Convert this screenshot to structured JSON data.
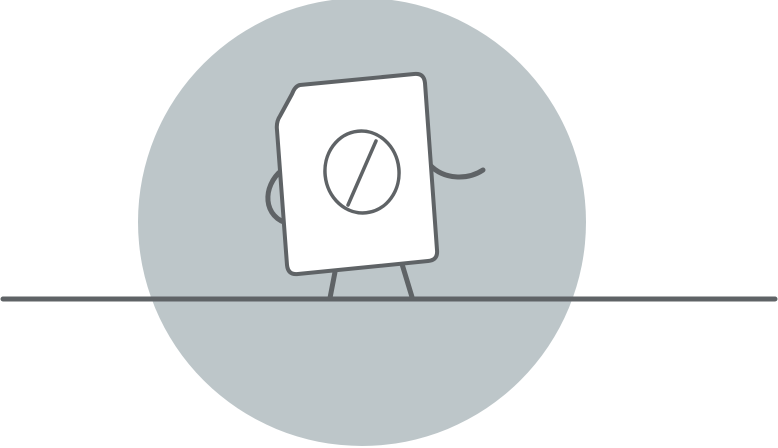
{
  "illustration": {
    "subject": "document-character-with-no-entry-symbol",
    "icons": [
      "no-entry-icon"
    ],
    "colors": {
      "background": "#ffffff",
      "circle": "#bdc6c9",
      "stroke": "#5f6366",
      "card": "#ffffff"
    }
  }
}
